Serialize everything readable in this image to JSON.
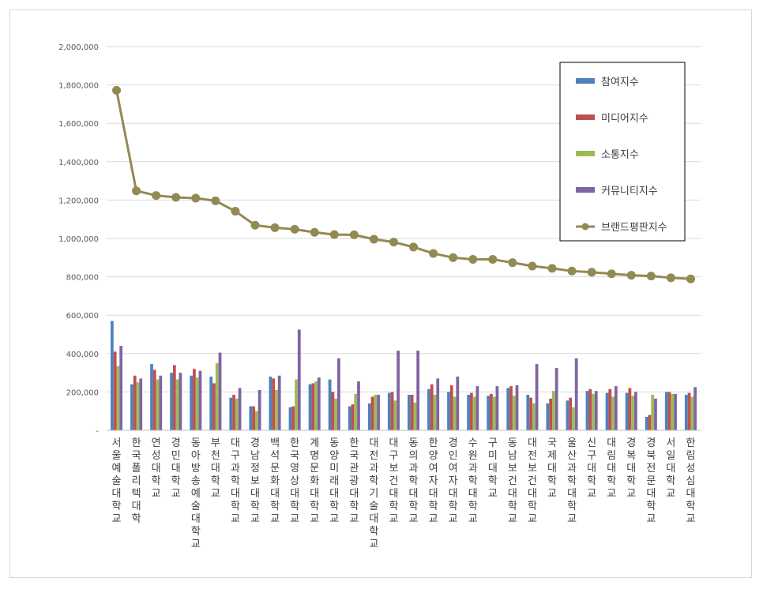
{
  "chart_data": {
    "type": "bar",
    "y_axis": {
      "min": 0,
      "max": 2000000,
      "step": 200000,
      "tick_labels": [
        "-",
        "200,000",
        "400,000",
        "600,000",
        "800,000",
        "1,000,000",
        "1,200,000",
        "1,400,000",
        "1,600,000",
        "1,800,000",
        "2,000,000"
      ]
    },
    "grid": true,
    "legend_position": "top-right",
    "categories": [
      "서울예술대학교",
      "한국폴리텍대학",
      "연성대학교",
      "경민대학교",
      "동아방송예술대학교",
      "부천대학교",
      "대구과학대학교",
      "경남정보대학교",
      "백석문화대학교",
      "한국영상대학교",
      "계명문화대학교",
      "동양미래대학교",
      "한국관광대학교",
      "대전과학기술대학교",
      "대구보건대학교",
      "동의과학대학교",
      "한양여자대학교",
      "경인여자대학교",
      "수원과학대학교",
      "구미대학교",
      "동남보건대학교",
      "대전보건대학교",
      "국제대학교",
      "울산과학대학교",
      "신구대학교",
      "대림대학교",
      "경복대학교",
      "경북전문대학교",
      "서일대학교",
      "한림성심대학교"
    ],
    "series": [
      {
        "name": "참여지수",
        "kind": "bar",
        "color": "#4f81bd",
        "values": [
          570000,
          240000,
          345000,
          300000,
          285000,
          280000,
          170000,
          125000,
          280000,
          120000,
          240000,
          265000,
          125000,
          140000,
          195000,
          185000,
          215000,
          200000,
          185000,
          180000,
          220000,
          185000,
          140000,
          155000,
          205000,
          195000,
          195000,
          70000,
          200000,
          185000
        ]
      },
      {
        "name": "미디어지수",
        "kind": "bar",
        "color": "#c0504d",
        "values": [
          410000,
          285000,
          315000,
          340000,
          320000,
          245000,
          185000,
          125000,
          270000,
          125000,
          245000,
          200000,
          135000,
          175000,
          200000,
          185000,
          240000,
          235000,
          195000,
          190000,
          230000,
          170000,
          165000,
          170000,
          215000,
          215000,
          220000,
          80000,
          200000,
          195000
        ]
      },
      {
        "name": "소통지수",
        "kind": "bar",
        "color": "#9bbb59",
        "values": [
          335000,
          250000,
          265000,
          265000,
          275000,
          350000,
          165000,
          100000,
          210000,
          265000,
          255000,
          165000,
          190000,
          185000,
          155000,
          145000,
          185000,
          175000,
          175000,
          175000,
          180000,
          140000,
          205000,
          120000,
          190000,
          175000,
          180000,
          185000,
          190000,
          175000
        ]
      },
      {
        "name": "커뮤니티지수",
        "kind": "bar",
        "color": "#8064a2",
        "values": [
          440000,
          270000,
          285000,
          300000,
          310000,
          405000,
          220000,
          210000,
          285000,
          525000,
          275000,
          375000,
          255000,
          185000,
          415000,
          415000,
          270000,
          280000,
          230000,
          230000,
          235000,
          345000,
          325000,
          375000,
          205000,
          230000,
          200000,
          165000,
          190000,
          225000
        ]
      },
      {
        "name": "브랜드평판지수",
        "kind": "line",
        "color": "#938953",
        "values": [
          1772000,
          1248000,
          1224000,
          1214000,
          1210000,
          1196000,
          1142000,
          1069000,
          1056000,
          1048000,
          1032000,
          1020000,
          1019000,
          996000,
          981000,
          955000,
          922000,
          900000,
          891000,
          891000,
          874000,
          856000,
          844000,
          830000,
          824000,
          816000,
          808000,
          804000,
          795000,
          789000
        ]
      }
    ]
  }
}
